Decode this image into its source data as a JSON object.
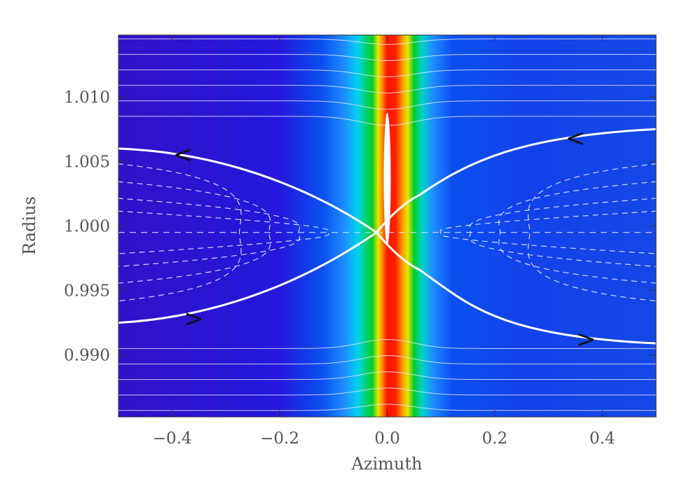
{
  "chart_data": {
    "type": "heatmap",
    "title": "",
    "xlabel": "Azimuth",
    "ylabel": "Radius",
    "xlim": [
      -0.5,
      0.5
    ],
    "ylim": [
      0.9852,
      1.0148
    ],
    "xticks": [
      {
        "value": -0.4,
        "label": "−0.4"
      },
      {
        "value": -0.2,
        "label": "−0.2"
      },
      {
        "value": 0.0,
        "label": "0.0"
      },
      {
        "value": 0.2,
        "label": "0.2"
      },
      {
        "value": 0.4,
        "label": "0.4"
      }
    ],
    "yticks": [
      {
        "value": 0.99,
        "label": "0.990"
      },
      {
        "value": 0.995,
        "label": "0.995"
      },
      {
        "value": 1.0,
        "label": "1.000"
      },
      {
        "value": 1.005,
        "label": "1.005"
      },
      {
        "value": 1.01,
        "label": "1.010"
      }
    ],
    "colormap": [
      "#2a14c8",
      "#0a3cf0",
      "#1f7dff",
      "#00c8f0",
      "#55e6b4",
      "#00cc33",
      "#d2e400",
      "#ffb400",
      "#ff3c00",
      "#f00000"
    ],
    "density_peak_x": 0.0,
    "density_peak_halfwidth": 0.03,
    "corotation_radius": 0.9995,
    "separatrix": {
      "left_in_upper": 1.006,
      "left_in_lower": 0.9925,
      "right_in_upper": 1.0075,
      "right_in_lower": 0.9909,
      "color": "#ffffff"
    },
    "dashed_contour_radii": [
      0.9995,
      1.0005,
      1.0018,
      1.0032
    ],
    "planet": {
      "x": 0.0,
      "y_top": 1.0088,
      "y_bottom": 0.9985
    },
    "arrows": [
      {
        "x": -0.38,
        "y": 1.0055,
        "glyph": "<"
      },
      {
        "x": -0.36,
        "y": 0.9928,
        "glyph": ">"
      },
      {
        "x": 0.35,
        "y": 1.0068,
        "glyph": "<"
      },
      {
        "x": 0.37,
        "y": 0.9912,
        "glyph": ">"
      }
    ]
  }
}
